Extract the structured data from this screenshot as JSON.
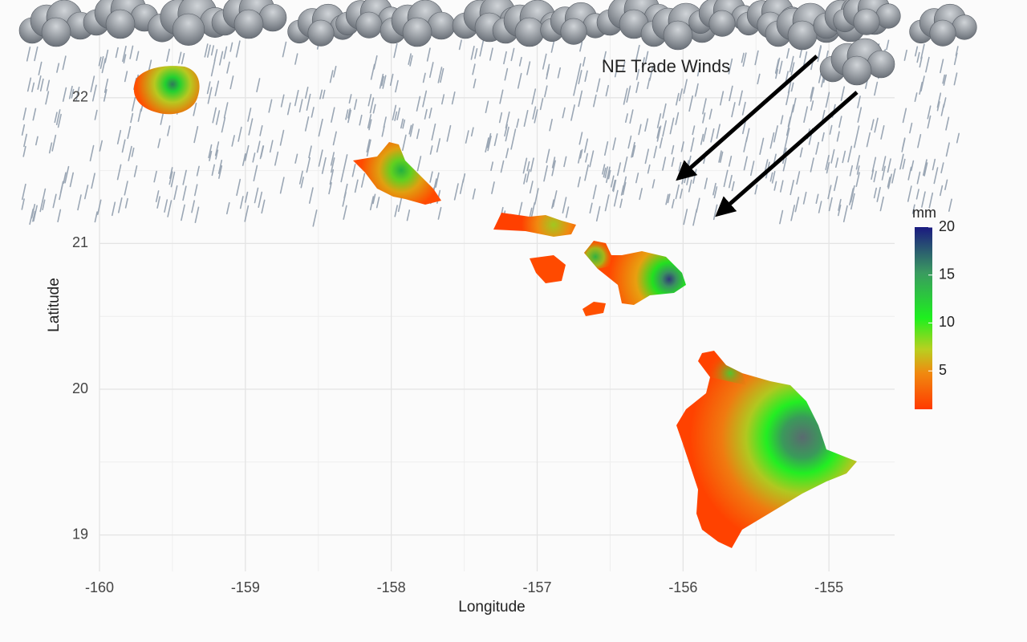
{
  "chart_data": {
    "type": "map",
    "xlabel": "Longitude",
    "ylabel": "Latitude",
    "xlim": [
      -160,
      -154.55
    ],
    "ylim": [
      18.75,
      22.5
    ],
    "xticks": [
      -160,
      -159,
      -158,
      -157,
      -156,
      -155
    ],
    "yticks": [
      19,
      20,
      21,
      22
    ],
    "x_minor_ticks": [
      -159.5,
      -158.5,
      -157.5,
      -156.5,
      -155.5
    ],
    "y_minor_ticks": [
      19.5,
      20.5,
      21.5
    ],
    "grid": true,
    "annotation": "NE Trade Winds",
    "colorbar": {
      "title": "mm",
      "lim": [
        1,
        20
      ],
      "ticks": [
        5,
        10,
        15,
        20
      ]
    }
  }
}
